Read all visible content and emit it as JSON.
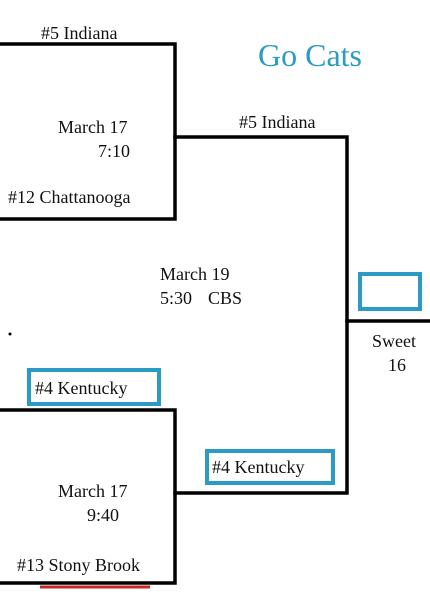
{
  "header": {
    "slogan": "Go Cats"
  },
  "games": [
    {
      "top_team": "#5 Indiana",
      "bottom_team": "#12 Chattanooga",
      "date": "March 17",
      "time": "7:10"
    },
    {
      "top_team": "#4 Kentucky",
      "bottom_team": "#13 Stony Brook",
      "date": "March 17",
      "time": "9:40"
    }
  ],
  "second_round": {
    "top_team": "#5 Indiana",
    "bottom_team": "#4 Kentucky",
    "date": "March 19",
    "time": "5:30",
    "network": "CBS"
  },
  "next_round": {
    "label": "Sweet",
    "number": "16"
  },
  "colors": {
    "highlight": "#2a9bc2",
    "line": "#000000"
  }
}
